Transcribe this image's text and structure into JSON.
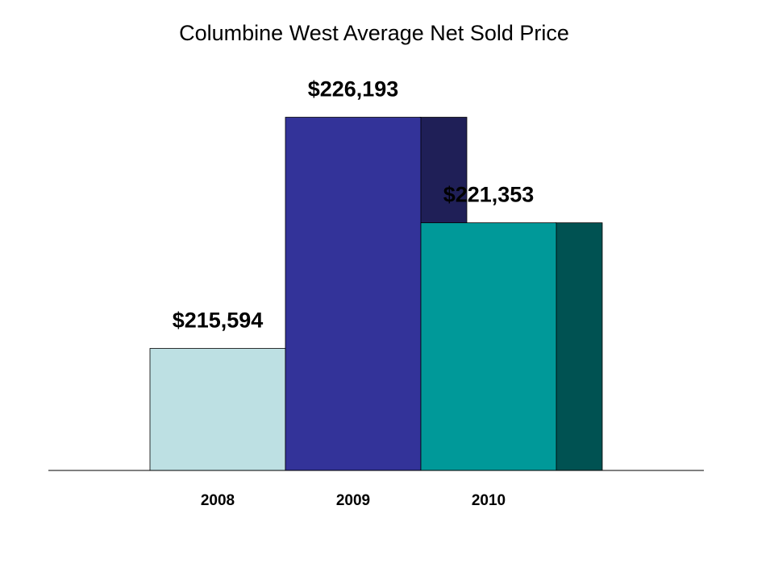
{
  "chart_data": {
    "type": "bar",
    "title": "Columbine West Average Net Sold Price",
    "xlabel": "",
    "ylabel": "",
    "categories": [
      "2008",
      "2009",
      "2010"
    ],
    "values": [
      215594,
      226193,
      221353
    ],
    "data_labels": [
      "$215,594",
      "$226,193",
      "$221,353"
    ],
    "colors": [
      "#BDE0E3",
      "#333399",
      "#009999"
    ],
    "side_colors": [
      null,
      "#1F1F57",
      "#005252"
    ],
    "ylim": [
      210000,
      230000
    ],
    "grid": false,
    "legend": "none"
  }
}
